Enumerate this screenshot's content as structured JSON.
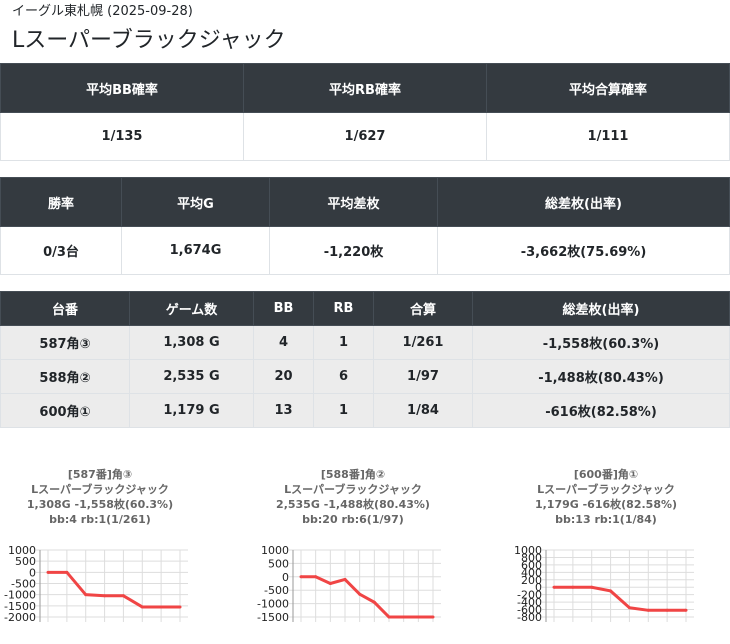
{
  "header": {
    "subtitle": "イーグル東札幌 (2025-09-28)",
    "title": "Lスーパーブラックジャック"
  },
  "prob_table": {
    "headers": [
      "平均BB確率",
      "平均RB確率",
      "平均合算確率"
    ],
    "values": [
      "1/135",
      "1/627",
      "1/111"
    ]
  },
  "summary_table": {
    "headers": [
      "勝率",
      "平均G",
      "平均差枚",
      "総差枚(出率)"
    ],
    "values": [
      "0/3台",
      "1,674G",
      "-1,220枚",
      "-3,662枚(75.69%)"
    ]
  },
  "machine_table": {
    "headers": [
      "台番",
      "ゲーム数",
      "BB",
      "RB",
      "合算",
      "総差枚(出率)"
    ],
    "rows": [
      [
        "587角③",
        "1,308 G",
        "4",
        "1",
        "1/261",
        "-1,558枚(60.3%)"
      ],
      [
        "588角②",
        "2,535 G",
        "20",
        "6",
        "1/97",
        "-1,488枚(80.43%)"
      ],
      [
        "600角①",
        "1,179 G",
        "13",
        "1",
        "1/84",
        "-616枚(82.58%)"
      ]
    ]
  },
  "colors": {
    "series": "#f04545",
    "header_bg": "#343a40",
    "row_bg": "#ececec"
  },
  "chart_data": [
    {
      "type": "line",
      "title_lines": [
        "[587番]角③",
        "Lスーパーブラックジャック",
        "1,308G -1,558枚(60.3%)",
        "bb:4 rb:1(1/261)"
      ],
      "yticks": [
        1000,
        500,
        0,
        -500,
        -1000,
        -1500,
        -2000
      ],
      "ylim": [
        -2000,
        1000
      ],
      "x": [
        0,
        1,
        2,
        3,
        4,
        5,
        6,
        7
      ],
      "values": [
        0,
        0,
        -1000,
        -1050,
        -1050,
        -1550,
        -1550,
        -1550
      ],
      "grid": true
    },
    {
      "type": "line",
      "title_lines": [
        "[588番]角②",
        "Lスーパーブラックジャック",
        "2,535G -1,488枚(80.43%)",
        "bb:20 rb:6(1/97)"
      ],
      "yticks": [
        1000,
        500,
        0,
        -500,
        -1000,
        -1500
      ],
      "ylim": [
        -1500,
        1000
      ],
      "x": [
        0,
        1,
        2,
        3,
        4,
        5,
        6,
        7,
        8,
        9
      ],
      "values": [
        0,
        0,
        -250,
        -100,
        -650,
        -950,
        -1500,
        -1500,
        -1500,
        -1500
      ],
      "grid": true
    },
    {
      "type": "line",
      "title_lines": [
        "[600番]角①",
        "Lスーパーブラックジャック",
        "1,179G -616枚(82.58%)",
        "bb:13 rb:1(1/84)"
      ],
      "yticks": [
        1000,
        800,
        600,
        400,
        200,
        0,
        -200,
        -400,
        -600,
        -800
      ],
      "ylim": [
        -800,
        1000
      ],
      "x": [
        0,
        1,
        2,
        3,
        4,
        5,
        6,
        7
      ],
      "values": [
        0,
        0,
        0,
        -100,
        -550,
        -620,
        -620,
        -620
      ],
      "grid": true
    }
  ]
}
